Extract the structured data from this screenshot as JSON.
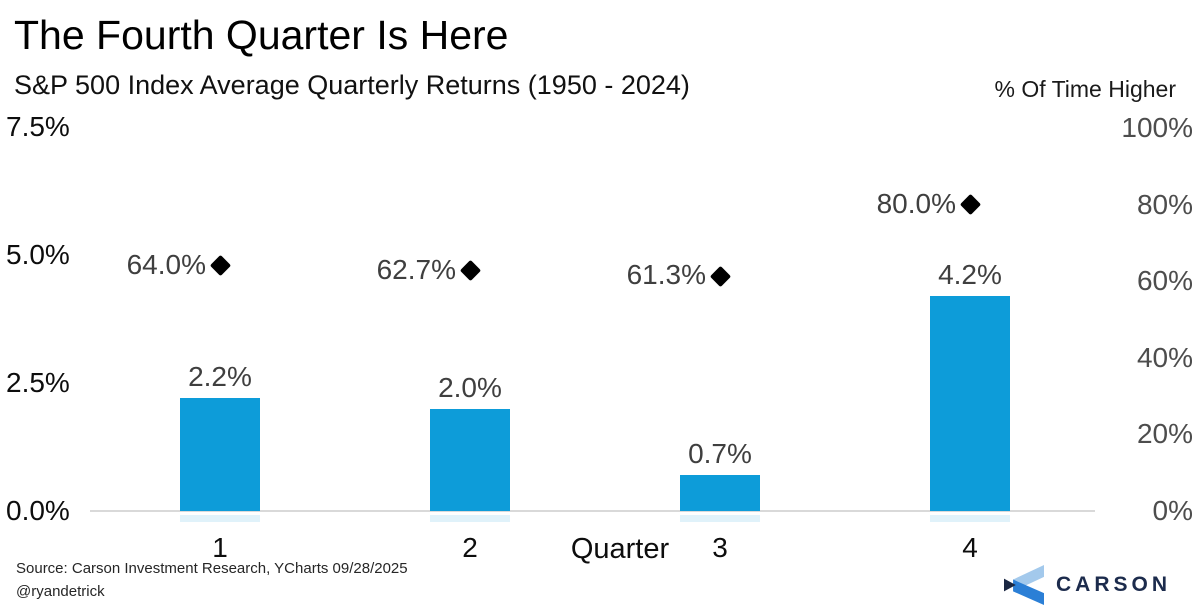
{
  "header": {
    "title": "The Fourth Quarter Is Here",
    "subtitle": "S&P 500 Index Average Quarterly Returns (1950 - 2024)",
    "right_axis_title": "% Of Time Higher"
  },
  "chart_data": {
    "type": "bar",
    "categories": [
      "1",
      "2",
      "3",
      "4"
    ],
    "xlabel": "Quarter",
    "series": [
      {
        "name": "Average quarterly return",
        "axis": "left",
        "values": [
          2.2,
          2.0,
          0.7,
          4.2
        ],
        "labels": [
          "2.2%",
          "2.0%",
          "0.7%",
          "4.2%"
        ],
        "style": "bar",
        "color": "#0d9cd9"
      },
      {
        "name": "% of time higher",
        "axis": "right",
        "values": [
          64.0,
          62.7,
          61.3,
          80.0
        ],
        "labels": [
          "64.0%",
          "62.7%",
          "61.3%",
          "80.0%"
        ],
        "style": "diamond-marker",
        "color": "#000000"
      }
    ],
    "left_axis": {
      "ticks": [
        "7.5%",
        "5.0%",
        "2.5%",
        "0.0%"
      ],
      "tick_values": [
        7.5,
        5.0,
        2.5,
        0.0
      ],
      "range": [
        0,
        7.5
      ]
    },
    "right_axis": {
      "ticks": [
        "100%",
        "80%",
        "60%",
        "40%",
        "20%",
        "0%"
      ],
      "tick_values": [
        100,
        80,
        60,
        40,
        20,
        0
      ],
      "range": [
        0,
        100
      ]
    },
    "grid": false,
    "legend": "none"
  },
  "footer": {
    "source": "Source: Carson Investment Research, YCharts 09/28/2025",
    "handle": "@ryandetrick",
    "brand": "CARSON",
    "brand_colors": {
      "light": "#a3c9ec",
      "mid": "#2b7fd6",
      "dark": "#1a2742",
      "text": "#1c2b4c"
    }
  }
}
